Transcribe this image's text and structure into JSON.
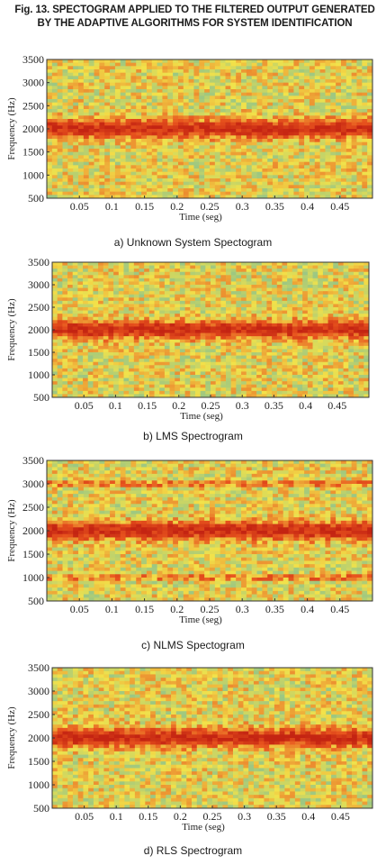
{
  "figure": {
    "title_line1": "Fig. 13. SPECTOGRAM APPLIED TO THE FILTERED OUTPUT GENERATED",
    "title_line2": "BY THE ADAPTIVE ALGORITHMS FOR SYSTEM IDENTIFICATION"
  },
  "chart_data": [
    {
      "type": "heatmap",
      "caption": "a) Unknown System Spectogram",
      "xlabel": "Time (seg)",
      "ylabel": "Frequency (Hz)",
      "xlim": [
        0,
        0.5
      ],
      "ylim": [
        500,
        3500
      ],
      "xticks": [
        "0.05",
        "0.1",
        "0.15",
        "0.2",
        "0.25",
        "0.3",
        "0.35",
        "0.4",
        "0.45"
      ],
      "yticks": [
        "500",
        "1000",
        "1500",
        "2000",
        "2500",
        "3000",
        "3500"
      ],
      "bands_hz": [
        2000
      ],
      "colors": {
        "low": "#6fb9a0",
        "mid": "#f2e24a",
        "high": "#e8541e",
        "peak": "#c42412"
      }
    },
    {
      "type": "heatmap",
      "caption": "b) LMS Spectrogram",
      "xlabel": "Time (seg)",
      "ylabel": "Frequency (Hz)",
      "xlim": [
        0,
        0.5
      ],
      "ylim": [
        500,
        3500
      ],
      "xticks": [
        "0.05",
        "0.1",
        "0.15",
        "0.2",
        "0.25",
        "0.3",
        "0.35",
        "0.4",
        "0.45"
      ],
      "yticks": [
        "500",
        "1000",
        "1500",
        "2000",
        "2500",
        "3000",
        "3500"
      ],
      "bands_hz": [
        2000
      ],
      "colors": {
        "low": "#6fb9a0",
        "mid": "#f2e24a",
        "high": "#e8541e",
        "peak": "#c42412"
      }
    },
    {
      "type": "heatmap",
      "caption": "c) NLMS Spectogram",
      "xlabel": "Time (seg)",
      "ylabel": "Frequency (Hz)",
      "xlim": [
        0,
        0.5
      ],
      "ylim": [
        500,
        3500
      ],
      "xticks": [
        "0.05",
        "0.1",
        "0.15",
        "0.2",
        "0.25",
        "0.3",
        "0.35",
        "0.4",
        "0.45"
      ],
      "yticks": [
        "500",
        "1000",
        "1500",
        "2000",
        "2500",
        "3000",
        "3500"
      ],
      "bands_hz": [
        2000,
        3000,
        1000
      ],
      "colors": {
        "low": "#6fb9a0",
        "mid": "#f2e24a",
        "high": "#e8541e",
        "peak": "#c42412"
      }
    },
    {
      "type": "heatmap",
      "caption": "d) RLS Spectrogram",
      "xlabel": "Time (seg)",
      "ylabel": "Frequency (Hz)",
      "xlim": [
        0,
        0.5
      ],
      "ylim": [
        500,
        3500
      ],
      "xticks": [
        "0.05",
        "0.1",
        "0.15",
        "0.2",
        "0.25",
        "0.3",
        "0.35",
        "0.4",
        "0.45"
      ],
      "yticks": [
        "500",
        "1000",
        "1500",
        "2000",
        "2500",
        "3000",
        "3500"
      ],
      "bands_hz": [
        2000
      ],
      "colors": {
        "low": "#6fb9a0",
        "mid": "#f2e24a",
        "high": "#e8541e",
        "peak": "#c42412"
      }
    }
  ]
}
